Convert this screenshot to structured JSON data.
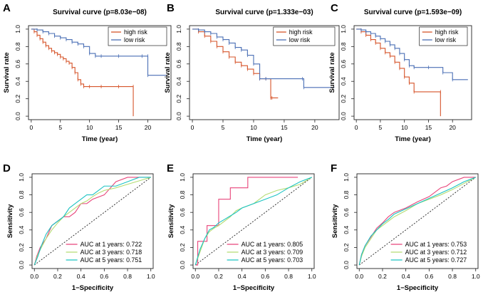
{
  "colors": {
    "high_risk": "#d6542a",
    "low_risk": "#4a6fb5",
    "auc1": "#e8447a",
    "auc3": "#b5dc74",
    "auc5": "#1bc3c2",
    "diagonal": "#222222",
    "axis": "#222222"
  },
  "chart_data": [
    {
      "panel_label": "A",
      "type": "line",
      "subtype": "kaplan-meier",
      "title": "Survival curve (p=8.03e−08)",
      "xlabel": "Time (year)",
      "ylabel": "Survival rate",
      "xlim": [
        0,
        23.5
      ],
      "ylim": [
        0,
        1.0
      ],
      "xticks": [
        0,
        5,
        10,
        15,
        20
      ],
      "yticks": [
        0.0,
        0.2,
        0.4,
        0.6,
        0.8,
        1.0
      ],
      "grid": false,
      "legend_position": "top-right",
      "series": [
        {
          "name": "high risk",
          "color_key": "high_risk",
          "x": [
            0,
            0.5,
            1,
            1.5,
            2,
            2.5,
            3,
            3.5,
            4,
            4.5,
            5,
            5.5,
            6,
            6.5,
            7,
            7.5,
            8,
            8.5,
            9,
            10,
            12,
            15,
            17.5,
            17.5
          ],
          "y": [
            1.0,
            0.97,
            0.93,
            0.89,
            0.85,
            0.81,
            0.78,
            0.75,
            0.73,
            0.71,
            0.68,
            0.66,
            0.63,
            0.61,
            0.56,
            0.5,
            0.42,
            0.37,
            0.34,
            0.34,
            0.34,
            0.34,
            0.34,
            0.0
          ]
        },
        {
          "name": "low risk",
          "color_key": "low_risk",
          "x": [
            0,
            1,
            2,
            3,
            4,
            5,
            6,
            7,
            8,
            9,
            10,
            11,
            12,
            15,
            19,
            20,
            20,
            23.2
          ],
          "y": [
            1.0,
            0.99,
            0.97,
            0.95,
            0.92,
            0.9,
            0.88,
            0.85,
            0.83,
            0.8,
            0.72,
            0.69,
            0.69,
            0.69,
            0.69,
            0.69,
            0.47,
            0.47
          ]
        }
      ]
    },
    {
      "panel_label": "B",
      "type": "line",
      "subtype": "kaplan-meier",
      "title": "Survival curve (p=1.333e−03)",
      "xlabel": "Time (year)",
      "ylabel": "Survival rate",
      "xlim": [
        0,
        23.5
      ],
      "ylim": [
        0,
        1.0
      ],
      "xticks": [
        0,
        5,
        10,
        15,
        20
      ],
      "yticks": [
        0.0,
        0.2,
        0.4,
        0.6,
        0.8,
        1.0
      ],
      "grid": false,
      "legend_position": "top-right",
      "series": [
        {
          "name": "high risk",
          "color_key": "high_risk",
          "x": [
            0,
            1,
            2,
            3,
            4,
            5,
            6,
            7,
            8,
            9,
            10,
            11,
            12,
            12.8,
            13,
            14
          ],
          "y": [
            1.0,
            0.97,
            0.92,
            0.86,
            0.8,
            0.74,
            0.68,
            0.62,
            0.58,
            0.54,
            0.49,
            0.43,
            0.43,
            0.21,
            0.21,
            0.21
          ]
        },
        {
          "name": "low risk",
          "color_key": "low_risk",
          "x": [
            0,
            1,
            2,
            3,
            4,
            5,
            6,
            7,
            8,
            9,
            10,
            11,
            12,
            18,
            18.2,
            23.2
          ],
          "y": [
            1.0,
            0.99,
            0.97,
            0.95,
            0.91,
            0.88,
            0.84,
            0.79,
            0.76,
            0.7,
            0.6,
            0.43,
            0.43,
            0.43,
            0.33,
            0.33
          ]
        }
      ]
    },
    {
      "panel_label": "C",
      "type": "line",
      "subtype": "kaplan-meier",
      "title": "Survival curve (p=1.593e−09)",
      "xlabel": "Time (year)",
      "ylabel": "Survival rate",
      "xlim": [
        0,
        23.5
      ],
      "ylim": [
        0,
        1.0
      ],
      "xticks": [
        0,
        5,
        10,
        15,
        20
      ],
      "yticks": [
        0.0,
        0.2,
        0.4,
        0.6,
        0.8,
        1.0
      ],
      "grid": false,
      "legend_position": "top-right",
      "series": [
        {
          "name": "high risk",
          "color_key": "high_risk",
          "x": [
            0,
            1,
            2,
            3,
            4,
            5,
            6,
            7,
            8,
            9,
            10,
            11,
            12,
            17.5,
            17.5
          ],
          "y": [
            1.0,
            0.97,
            0.93,
            0.88,
            0.84,
            0.78,
            0.73,
            0.69,
            0.62,
            0.55,
            0.45,
            0.38,
            0.28,
            0.28,
            0.0
          ]
        },
        {
          "name": "low risk",
          "color_key": "low_risk",
          "x": [
            0,
            1,
            2,
            3,
            4,
            5,
            6,
            7,
            8,
            9,
            10,
            11,
            12,
            15,
            18,
            20,
            23.2
          ],
          "y": [
            1.0,
            0.99,
            0.97,
            0.95,
            0.92,
            0.89,
            0.86,
            0.82,
            0.78,
            0.72,
            0.65,
            0.58,
            0.56,
            0.56,
            0.5,
            0.42,
            0.42
          ]
        }
      ]
    },
    {
      "panel_label": "D",
      "type": "line",
      "subtype": "roc",
      "title": "",
      "xlabel": "1−Specificity",
      "ylabel": "Sensitivity",
      "xlim": [
        0,
        1
      ],
      "ylim": [
        0,
        1
      ],
      "xticks": [
        0.0,
        0.2,
        0.4,
        0.6,
        0.8,
        1.0
      ],
      "yticks": [
        0.0,
        0.2,
        0.4,
        0.6,
        0.8,
        1.0
      ],
      "grid": false,
      "legend_position": "bottom-right",
      "diagonal": true,
      "series": [
        {
          "name": "AUC at 1 years: 0.722",
          "color_key": "auc1",
          "x": [
            0,
            0.02,
            0.05,
            0.1,
            0.15,
            0.2,
            0.25,
            0.3,
            0.35,
            0.4,
            0.45,
            0.5,
            0.6,
            0.7,
            0.8,
            0.9,
            1.0
          ],
          "y": [
            0,
            0.1,
            0.2,
            0.3,
            0.45,
            0.5,
            0.55,
            0.55,
            0.6,
            0.7,
            0.7,
            0.75,
            0.8,
            0.95,
            1.0,
            1.0,
            1.0
          ]
        },
        {
          "name": "AUC at 3 years: 0.718",
          "color_key": "auc3",
          "x": [
            0,
            0.03,
            0.06,
            0.1,
            0.15,
            0.2,
            0.25,
            0.3,
            0.35,
            0.4,
            0.45,
            0.5,
            0.55,
            0.6,
            0.7,
            0.8,
            0.9,
            1.0
          ],
          "y": [
            0,
            0.12,
            0.2,
            0.3,
            0.4,
            0.48,
            0.55,
            0.6,
            0.65,
            0.7,
            0.73,
            0.78,
            0.82,
            0.85,
            0.88,
            0.92,
            0.96,
            1.0
          ]
        },
        {
          "name": "AUC at 5 years: 0.751",
          "color_key": "auc5",
          "x": [
            0,
            0.03,
            0.06,
            0.1,
            0.15,
            0.2,
            0.25,
            0.3,
            0.35,
            0.4,
            0.45,
            0.5,
            0.55,
            0.6,
            0.7,
            0.8,
            0.9,
            1.0
          ],
          "y": [
            0,
            0.1,
            0.22,
            0.35,
            0.45,
            0.5,
            0.55,
            0.65,
            0.7,
            0.75,
            0.8,
            0.8,
            0.85,
            0.9,
            0.9,
            0.95,
            1.0,
            1.0
          ]
        }
      ]
    },
    {
      "panel_label": "E",
      "type": "line",
      "subtype": "roc",
      "title": "",
      "xlabel": "1−Specificity",
      "ylabel": "Sensitivity",
      "xlim": [
        0,
        1
      ],
      "ylim": [
        0,
        1
      ],
      "xticks": [
        0.0,
        0.2,
        0.4,
        0.6,
        0.8,
        1.0
      ],
      "yticks": [
        0.0,
        0.2,
        0.4,
        0.6,
        0.8,
        1.0
      ],
      "grid": false,
      "legend_position": "bottom-right",
      "diagonal": true,
      "series": [
        {
          "name": "AUC at 1 years: 0.805",
          "color_key": "auc1",
          "x": [
            0,
            0.02,
            0.02,
            0.1,
            0.1,
            0.2,
            0.2,
            0.3,
            0.3,
            0.45,
            0.45,
            0.88,
            0.88
          ],
          "y": [
            0,
            0,
            0.27,
            0.27,
            0.45,
            0.45,
            0.75,
            0.75,
            0.88,
            0.88,
            1.0,
            1.0,
            1.0
          ]
        },
        {
          "name": "AUC at 3 years: 0.709",
          "color_key": "auc3",
          "x": [
            0,
            0.04,
            0.08,
            0.12,
            0.16,
            0.2,
            0.25,
            0.3,
            0.35,
            0.4,
            0.5,
            0.6,
            0.7,
            0.8,
            0.9,
            1.0
          ],
          "y": [
            0,
            0.15,
            0.3,
            0.38,
            0.42,
            0.45,
            0.5,
            0.55,
            0.62,
            0.65,
            0.7,
            0.8,
            0.85,
            0.88,
            0.92,
            1.0
          ]
        },
        {
          "name": "AUC at 5 years: 0.703",
          "color_key": "auc5",
          "x": [
            0,
            0.04,
            0.08,
            0.12,
            0.16,
            0.2,
            0.25,
            0.3,
            0.35,
            0.4,
            0.5,
            0.6,
            0.7,
            0.8,
            0.9,
            1.0
          ],
          "y": [
            0,
            0.18,
            0.3,
            0.4,
            0.43,
            0.48,
            0.52,
            0.56,
            0.6,
            0.65,
            0.7,
            0.75,
            0.8,
            0.88,
            0.95,
            1.0
          ]
        }
      ]
    },
    {
      "panel_label": "F",
      "type": "line",
      "subtype": "roc",
      "title": "",
      "xlabel": "1−Specificity",
      "ylabel": "Sensitivity",
      "xlim": [
        0,
        1
      ],
      "ylim": [
        0,
        1
      ],
      "xticks": [
        0.0,
        0.2,
        0.4,
        0.6,
        0.8,
        1.0
      ],
      "yticks": [
        0.0,
        0.2,
        0.4,
        0.6,
        0.8,
        1.0
      ],
      "grid": false,
      "legend_position": "bottom-right",
      "diagonal": true,
      "series": [
        {
          "name": "AUC at 1 years: 0.753",
          "color_key": "auc1",
          "x": [
            0,
            0.02,
            0.05,
            0.1,
            0.15,
            0.2,
            0.25,
            0.3,
            0.4,
            0.5,
            0.6,
            0.7,
            0.75,
            0.8,
            0.9,
            1.0
          ],
          "y": [
            0,
            0.12,
            0.22,
            0.32,
            0.42,
            0.48,
            0.55,
            0.6,
            0.65,
            0.72,
            0.78,
            0.88,
            0.9,
            0.95,
            1.0,
            1.0
          ]
        },
        {
          "name": "AUC at 3 years: 0.712",
          "color_key": "auc3",
          "x": [
            0,
            0.02,
            0.05,
            0.1,
            0.15,
            0.2,
            0.25,
            0.3,
            0.4,
            0.5,
            0.6,
            0.7,
            0.8,
            0.9,
            1.0
          ],
          "y": [
            0,
            0.1,
            0.2,
            0.3,
            0.4,
            0.45,
            0.5,
            0.55,
            0.62,
            0.7,
            0.75,
            0.8,
            0.86,
            0.93,
            1.0
          ]
        },
        {
          "name": "AUC at 5 years: 0.727",
          "color_key": "auc5",
          "x": [
            0,
            0.02,
            0.05,
            0.1,
            0.15,
            0.2,
            0.25,
            0.3,
            0.4,
            0.5,
            0.6,
            0.7,
            0.8,
            0.9,
            1.0
          ],
          "y": [
            0,
            0.12,
            0.22,
            0.33,
            0.4,
            0.47,
            0.52,
            0.58,
            0.64,
            0.7,
            0.76,
            0.82,
            0.88,
            0.95,
            1.0
          ]
        }
      ]
    }
  ]
}
